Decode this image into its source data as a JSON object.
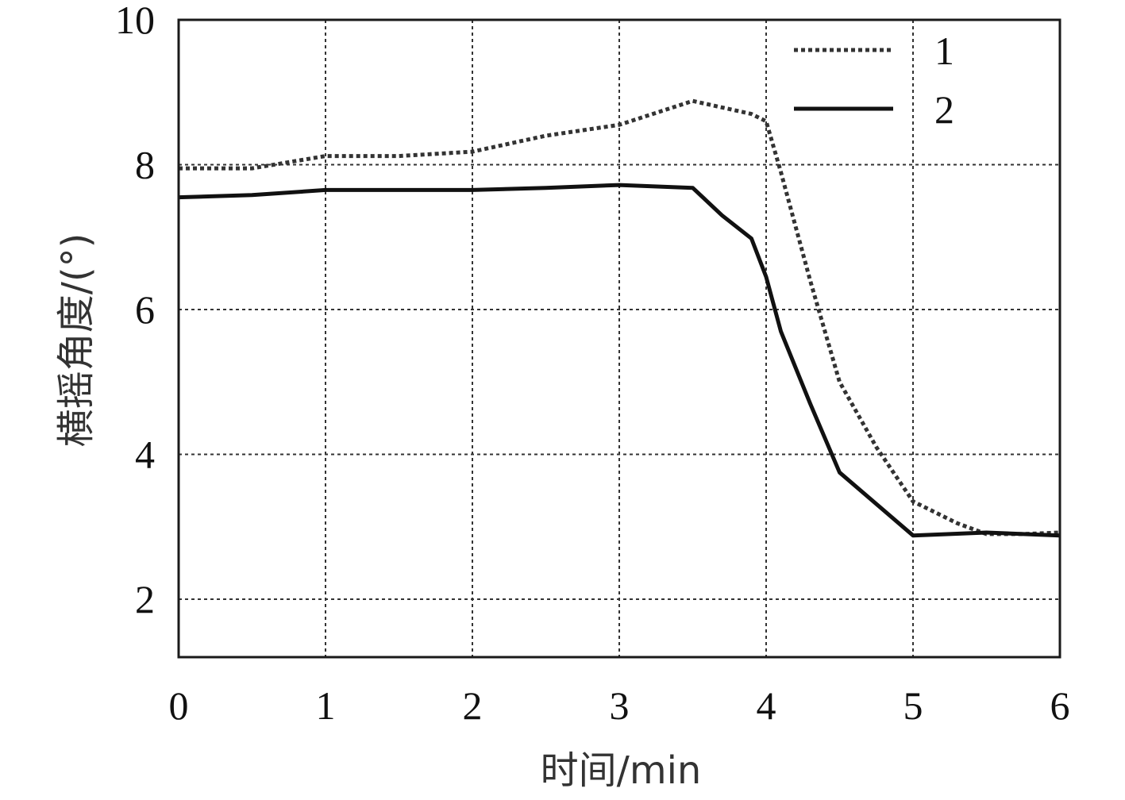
{
  "chart_data": {
    "type": "line",
    "title": "",
    "xlabel": "时间/min",
    "ylabel": "横摇角度/(°)",
    "xlim": [
      0,
      6
    ],
    "ylim": [
      1.2,
      10
    ],
    "x_ticks": [
      0,
      1,
      2,
      3,
      4,
      5,
      6
    ],
    "y_ticks": [
      2,
      4,
      6,
      8,
      10
    ],
    "grid": true,
    "legend_position": "top-right",
    "series": [
      {
        "name": "1",
        "style": "dotted",
        "color": "#333333",
        "points": [
          [
            0,
            7.95
          ],
          [
            0.5,
            7.95
          ],
          [
            1,
            8.12
          ],
          [
            1.5,
            8.12
          ],
          [
            2,
            8.18
          ],
          [
            2.5,
            8.4
          ],
          [
            3,
            8.55
          ],
          [
            3.5,
            8.88
          ],
          [
            3.9,
            8.7
          ],
          [
            4.0,
            8.6
          ],
          [
            4.1,
            7.9
          ],
          [
            4.3,
            6.4
          ],
          [
            4.5,
            5.0
          ],
          [
            4.75,
            4.1
          ],
          [
            5.0,
            3.35
          ],
          [
            5.3,
            3.05
          ],
          [
            5.5,
            2.9
          ],
          [
            5.75,
            2.9
          ],
          [
            6,
            2.92
          ]
        ]
      },
      {
        "name": "2",
        "style": "solid",
        "color": "#111111",
        "points": [
          [
            0,
            7.55
          ],
          [
            0.5,
            7.58
          ],
          [
            1,
            7.65
          ],
          [
            1.5,
            7.65
          ],
          [
            2,
            7.65
          ],
          [
            2.5,
            7.68
          ],
          [
            3,
            7.72
          ],
          [
            3.5,
            7.68
          ],
          [
            3.7,
            7.3
          ],
          [
            3.9,
            6.98
          ],
          [
            4.0,
            6.45
          ],
          [
            4.1,
            5.7
          ],
          [
            4.3,
            4.7
          ],
          [
            4.5,
            3.75
          ],
          [
            5.0,
            2.88
          ],
          [
            5.5,
            2.92
          ],
          [
            6,
            2.88
          ]
        ]
      }
    ]
  }
}
